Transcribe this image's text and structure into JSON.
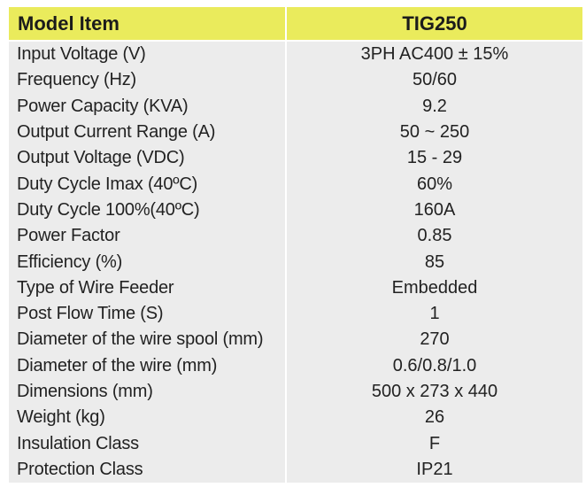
{
  "header": {
    "model_label": "Model Item",
    "model_value": "TIG250"
  },
  "specs": [
    {
      "label": "Input Voltage (V)",
      "value": "3PH AC400 ± 15%"
    },
    {
      "label": "Frequency (Hz)",
      "value": "50/60"
    },
    {
      "label": "Power Capacity (KVA)",
      "value": "9.2"
    },
    {
      "label": "Output Current Range (A)",
      "value": "50 ~ 250"
    },
    {
      "label": "Output Voltage (VDC)",
      "value": "15 - 29"
    },
    {
      "label": "Duty Cycle Imax (40ºC)",
      "value": "60%"
    },
    {
      "label": "Duty Cycle 100%(40ºC)",
      "value": "160A"
    },
    {
      "label": "Power Factor",
      "value": "0.85"
    },
    {
      "label": "Efficiency (%)",
      "value": "85"
    },
    {
      "label": "Type of Wire Feeder",
      "value": "Embedded"
    },
    {
      "label": "Post Flow Time (S)",
      "value": "1"
    },
    {
      "label": "Diameter of the wire spool (mm)",
      "value": "270"
    },
    {
      "label": "Diameter of the wire (mm)",
      "value": "0.6/0.8/1.0"
    },
    {
      "label": "Dimensions (mm)",
      "value": "500 x 273 x 440"
    },
    {
      "label": "Weight (kg)",
      "value": "26"
    },
    {
      "label": "Insulation Class",
      "value": "F"
    },
    {
      "label": "Protection Class",
      "value": "IP21"
    }
  ],
  "colors": {
    "header_bg": "#eaeb5c",
    "body_bg": "#ececec",
    "text": "#222222"
  }
}
